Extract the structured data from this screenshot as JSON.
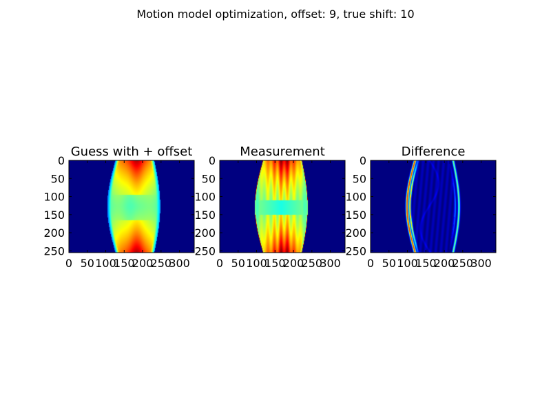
{
  "figure": {
    "suptitle": "Motion model optimization, offset:  9, true shift: 10"
  },
  "chart_data": [
    {
      "type": "heatmap",
      "title": "Guess with + offset",
      "xlim": [
        0,
        340
      ],
      "ylim": [
        255,
        0
      ],
      "xticks": [
        0,
        50,
        100,
        150,
        200,
        250,
        300
      ],
      "yticks": [
        0,
        50,
        100,
        150,
        200,
        250
      ],
      "colormap": "jet",
      "pattern": "guess"
    },
    {
      "type": "heatmap",
      "title": "Measurement",
      "xlim": [
        0,
        340
      ],
      "ylim": [
        255,
        0
      ],
      "xticks": [
        0,
        50,
        100,
        150,
        200,
        250,
        300
      ],
      "yticks": [
        0,
        50,
        100,
        150,
        200,
        250
      ],
      "colormap": "jet",
      "pattern": "measurement"
    },
    {
      "type": "heatmap",
      "title": "Difference",
      "xlim": [
        0,
        340
      ],
      "ylim": [
        255,
        0
      ],
      "xticks": [
        0,
        50,
        100,
        150,
        200,
        250,
        300
      ],
      "yticks": [
        0,
        50,
        100,
        150,
        200,
        250
      ],
      "colormap": "jet",
      "pattern": "difference"
    }
  ]
}
